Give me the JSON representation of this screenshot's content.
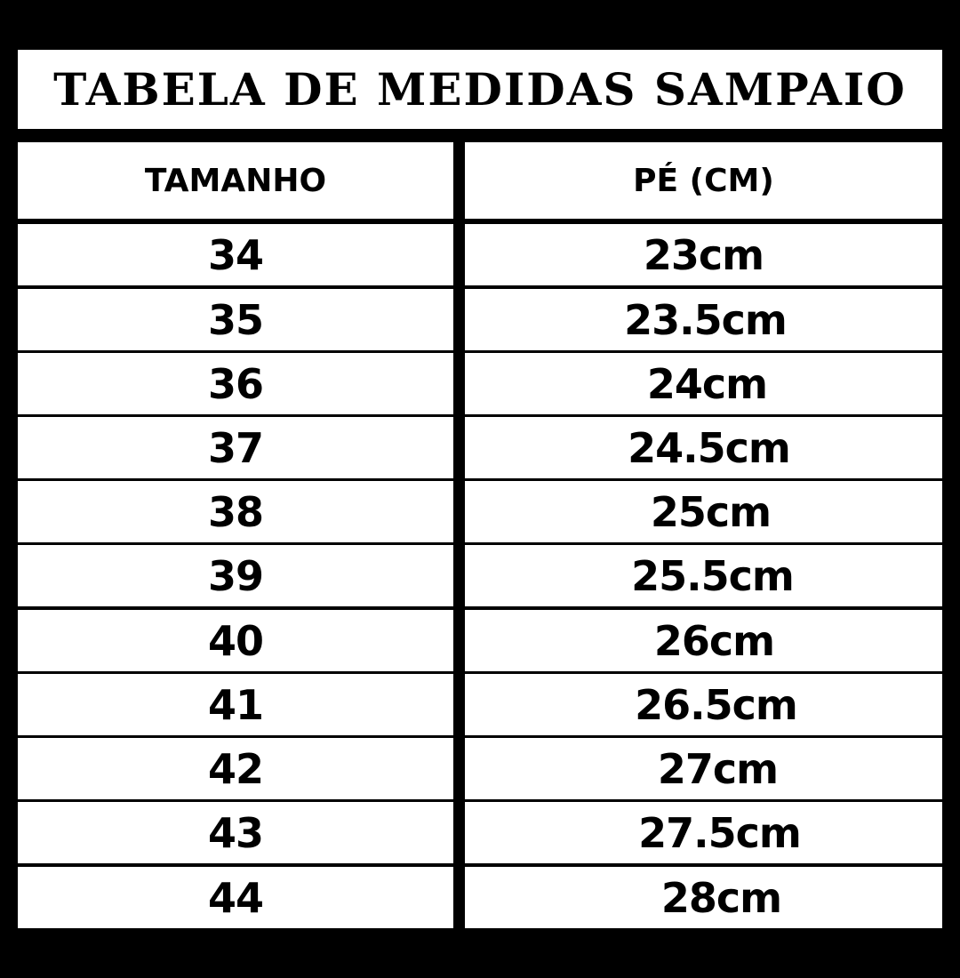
{
  "title": "TABELA DE MEDIDAS SAMPAIO",
  "headers": [
    "TAMANHO",
    "PÉ (CM)"
  ],
  "rows": [
    [
      "34",
      "23cm"
    ],
    [
      "35",
      "23.5cm"
    ],
    [
      "36",
      "24cm"
    ],
    [
      "37",
      "24.5cm"
    ],
    [
      "38",
      "25cm"
    ],
    [
      "39",
      "25.5cm"
    ],
    [
      "40",
      "26cm"
    ],
    [
      "41",
      "26.5cm"
    ],
    [
      "42",
      "27cm"
    ],
    [
      "43",
      "27.5cm"
    ],
    [
      "44",
      "28cm"
    ]
  ],
  "colors": {
    "background": "#000000",
    "cell": "#ffffff",
    "text": "#000000"
  }
}
